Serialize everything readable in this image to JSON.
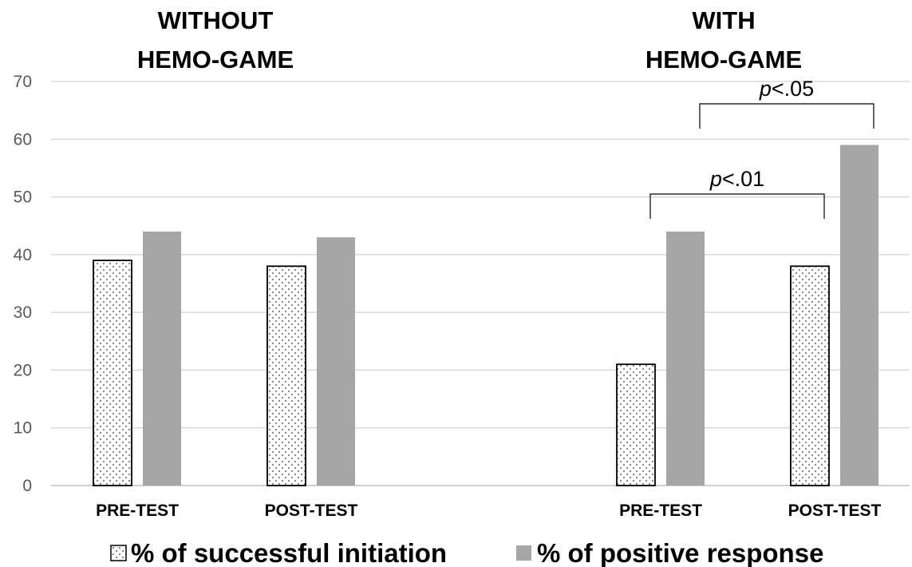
{
  "chart_data": {
    "type": "bar",
    "groups": [
      {
        "title": [
          "WITHOUT",
          "HEMO-GAME"
        ],
        "categories": [
          "PRE-TEST",
          "POST-TEST"
        ]
      },
      {
        "title": [
          "WITH",
          "HEMO-GAME"
        ],
        "categories": [
          "PRE-TEST",
          "POST-TEST"
        ]
      }
    ],
    "series": [
      {
        "name": "% of successful initiation",
        "pattern": "dotted",
        "color": "#ffffff",
        "values": [
          39,
          38,
          21,
          38
        ]
      },
      {
        "name": "% of positive response",
        "pattern": "solid",
        "color": "#a6a6a6",
        "values": [
          44,
          43,
          44,
          59
        ]
      }
    ],
    "y_ticks": [
      "0",
      "10",
      "20",
      "30",
      "40",
      "50",
      "60",
      "70"
    ],
    "ylim": [
      0,
      70
    ],
    "grid": true,
    "legend_position": "bottom",
    "annotations": [
      {
        "prefix": "p",
        "text": "<.01",
        "from_bar": "WITH HEMO-GAME PRE-TEST % of successful initiation",
        "to_bar": "WITH HEMO-GAME POST-TEST % of successful initiation"
      },
      {
        "prefix": "p",
        "text": "<.05",
        "from_bar": "WITH HEMO-GAME PRE-TEST % of positive response",
        "to_bar": "WITH HEMO-GAME POST-TEST % of positive response"
      }
    ]
  }
}
